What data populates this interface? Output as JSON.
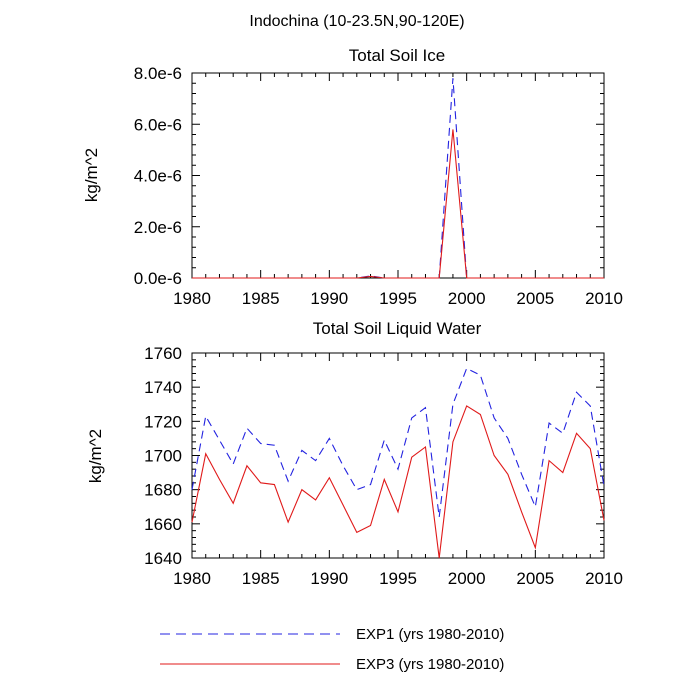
{
  "figure": {
    "suptitle": "Indochina (10-23.5N,90-120E)",
    "legend": [
      {
        "label": "EXP1 (yrs 1980-2010)",
        "color": "#2323e0",
        "style": "dashed"
      },
      {
        "label": "EXP3 (yrs 1980-2010)",
        "color": "#e01a1a",
        "style": "solid"
      }
    ]
  },
  "chart_data": [
    {
      "type": "line",
      "title": "Total Soil Ice",
      "xlabel": "",
      "ylabel": "kg/m^2",
      "xlim": [
        1980,
        2010
      ],
      "ylim": [
        0,
        8e-06
      ],
      "xticks": [
        1980,
        1985,
        1990,
        1995,
        2000,
        2005,
        2010
      ],
      "yticks": [
        0,
        2e-06,
        4e-06,
        6e-06,
        8e-06
      ],
      "ytick_labels": [
        "0.0e-6",
        "2.0e-6",
        "4.0e-6",
        "6.0e-6",
        "8.0e-6"
      ],
      "x": [
        1980,
        1981,
        1982,
        1983,
        1984,
        1985,
        1986,
        1987,
        1988,
        1989,
        1990,
        1991,
        1992,
        1993,
        1994,
        1995,
        1996,
        1997,
        1998,
        1999,
        2000,
        2001,
        2002,
        2003,
        2004,
        2005,
        2006,
        2007,
        2008,
        2009,
        2010
      ],
      "series": [
        {
          "name": "EXP1 (yrs 1980-2010)",
          "color": "#2323e0",
          "style": "dashed",
          "values": [
            0,
            0,
            0,
            0,
            0,
            0,
            0,
            0,
            0,
            0,
            0,
            0,
            0,
            8e-08,
            0,
            0,
            0,
            0,
            0,
            7.8e-06,
            0,
            0,
            0,
            0,
            0,
            0,
            0,
            0,
            0,
            0,
            0
          ]
        },
        {
          "name": "EXP3 (yrs 1980-2010)",
          "color": "#e01a1a",
          "style": "solid",
          "values": [
            0,
            0,
            0,
            0,
            0,
            0,
            0,
            0,
            0,
            0,
            0,
            0,
            0,
            6e-08,
            0,
            0,
            0,
            0,
            0,
            5.8e-06,
            0,
            0,
            0,
            0,
            0,
            0,
            0,
            0,
            0,
            0,
            0
          ]
        }
      ]
    },
    {
      "type": "line",
      "title": "Total Soil Liquid Water",
      "xlabel": "",
      "ylabel": "kg/m^2",
      "xlim": [
        1980,
        2010
      ],
      "ylim": [
        1640,
        1760
      ],
      "xticks": [
        1980,
        1985,
        1990,
        1995,
        2000,
        2005,
        2010
      ],
      "yticks": [
        1640,
        1660,
        1680,
        1700,
        1720,
        1740,
        1760
      ],
      "ytick_labels": [
        "1640",
        "1660",
        "1680",
        "1700",
        "1720",
        "1740",
        "1760"
      ],
      "x": [
        1980,
        1981,
        1982,
        1983,
        1984,
        1985,
        1986,
        1987,
        1988,
        1989,
        1990,
        1991,
        1992,
        1993,
        1994,
        1995,
        1996,
        1997,
        1998,
        1999,
        2000,
        2001,
        2002,
        2003,
        2004,
        2005,
        2006,
        2007,
        2008,
        2009,
        2010
      ],
      "series": [
        {
          "name": "EXP1 (yrs 1980-2010)",
          "color": "#2323e0",
          "style": "dashed",
          "values": [
            1680,
            1723,
            1709,
            1695,
            1716,
            1707,
            1706,
            1685,
            1703,
            1697,
            1710,
            1694,
            1680,
            1683,
            1709,
            1692,
            1722,
            1728,
            1664,
            1730,
            1751,
            1747,
            1722,
            1710,
            1689,
            1670,
            1719,
            1713,
            1737,
            1729,
            1682
          ]
        },
        {
          "name": "EXP3 (yrs 1980-2010)",
          "color": "#e01a1a",
          "style": "solid",
          "values": [
            1661,
            1701,
            1686,
            1672,
            1694,
            1684,
            1683,
            1661,
            1680,
            1674,
            1687,
            1671,
            1655,
            1659,
            1686,
            1667,
            1699,
            1705,
            1640,
            1708,
            1729,
            1724,
            1700,
            1689,
            1667,
            1646,
            1697,
            1690,
            1713,
            1704,
            1662
          ]
        }
      ]
    }
  ]
}
